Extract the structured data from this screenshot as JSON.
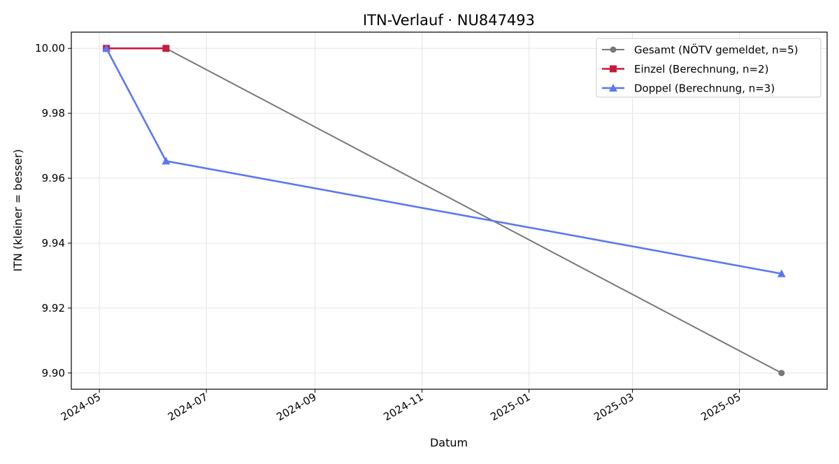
{
  "chart_data": {
    "type": "line",
    "title": "ITN-Verlauf · NU847493",
    "xlabel": "Datum",
    "ylabel": "ITN  (kleiner = besser)",
    "x_is_date": true,
    "xlim": [
      "2024-04-15",
      "2025-06-20"
    ],
    "ylim": [
      9.895,
      10.005
    ],
    "x_ticks": [
      "2024-05",
      "2024-07",
      "2024-09",
      "2024-11",
      "2025-01",
      "2025-03",
      "2025-05"
    ],
    "y_ticks": [
      "9.90",
      "9.92",
      "9.94",
      "9.96",
      "9.98",
      "10.00"
    ],
    "grid": true,
    "legend_position": "top-right",
    "series": [
      {
        "name": "Gesamt (NÖTV gemeldet, n=5)",
        "color": "#777777",
        "marker": "circle",
        "points": [
          {
            "x": "2024-05-05",
            "y": 10.0
          },
          {
            "x": "2024-06-08",
            "y": 10.0
          },
          {
            "x": "2025-05-25",
            "y": 9.9
          }
        ]
      },
      {
        "name": "Einzel (Berechnung, n=2)",
        "color": "#c8193c",
        "marker": "square",
        "points": [
          {
            "x": "2024-05-05",
            "y": 10.0
          },
          {
            "x": "2024-06-08",
            "y": 10.0
          }
        ]
      },
      {
        "name": "Doppel (Berechnung, n=3)",
        "color": "#5a78f0",
        "marker": "triangle",
        "points": [
          {
            "x": "2024-05-05",
            "y": 10.0
          },
          {
            "x": "2024-06-08",
            "y": 9.9653
          },
          {
            "x": "2025-05-25",
            "y": 9.9306
          }
        ]
      }
    ]
  }
}
